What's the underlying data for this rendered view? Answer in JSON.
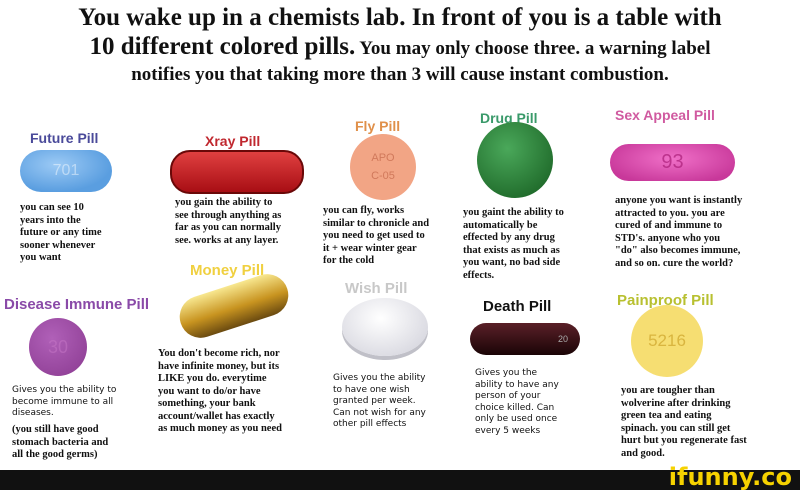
{
  "title": {
    "line1": "You wake up in a chemists lab. In front of you is a table with",
    "line2_big": "10 different colored pills.",
    "line2_small": " You may only choose three. a warning label",
    "line3": "notifies you that taking more than 3 will cause instant combustion."
  },
  "pills": {
    "future": {
      "label": "Future Pill",
      "imprint": "701",
      "color": "#5a9ee0",
      "desc": "you can see 10\nyears into the\nfuture or any time\nsooner whenever\nyou want"
    },
    "xray": {
      "label": "Xray Pill",
      "color": "#c0202a",
      "desc": "you gain the ability to\nsee through anything as\nfar as you can normally\nsee. works at any layer."
    },
    "fly": {
      "label": "Fly Pill",
      "imprint": "APO\nC-05",
      "color": "#f0a080",
      "desc": "you can fly, works\nsimilar to chronicle and\nyou need to get used to\nit + wear winter gear\nfor the cold"
    },
    "drug": {
      "label": "Drug Pill",
      "color": "#2f8a3f",
      "desc": "you gaint the ability to\nautomatically be\neffected by any drug\nthat exists as much as\nyou want, no bad side\neffects."
    },
    "sex_appeal": {
      "label": "Sex Appeal Pill",
      "imprint": "93",
      "color": "#e050b0",
      "desc": "anyone you want is instantly\nattracted to you. you are\ncured of and immune to\nSTD's. anyone who you\n\"do\" also becomes immune,\nand so on. cure the world?"
    },
    "money": {
      "label": "Money Pill",
      "color": "#d4a830",
      "desc": "You don't become rich, nor\nhave infinite money, but its\nLIKE you do. everytime\nyou want to do/or have\nsomething, your bank\naccount/wallet has exactly\nas much money as you need"
    },
    "disease_immune": {
      "label": "Disease Immune Pill",
      "imprint": "30",
      "color": "#9a4aa0",
      "desc": "Gives you the ability to\nbecome immune to all\ndiseases.",
      "desc2": "(you still have good\nstomach bacteria and\nall the good germs)"
    },
    "wish": {
      "label": "Wish Pill",
      "color": "#e8e8ee",
      "desc": "Gives you the ability\nto have one wish\ngranted per week.\nCan not wish for any\nother pill effects"
    },
    "death": {
      "label": "Death Pill",
      "imprint": "20",
      "color": "#2a0a0e",
      "desc": "Gives you the\nability to have any\nperson of your\nchoice killed. Can\nonly be used once\nevery 5 weeks"
    },
    "painproof": {
      "label": "Painproof Pill",
      "imprint": "5216",
      "color": "#f5dc70",
      "desc": "you are tougher than\nwolverine after drinking\ngreen tea and eating\nspinach. you can still get\nhurt but you regenerate fast\nand good."
    }
  },
  "watermark": "ifunny.co"
}
